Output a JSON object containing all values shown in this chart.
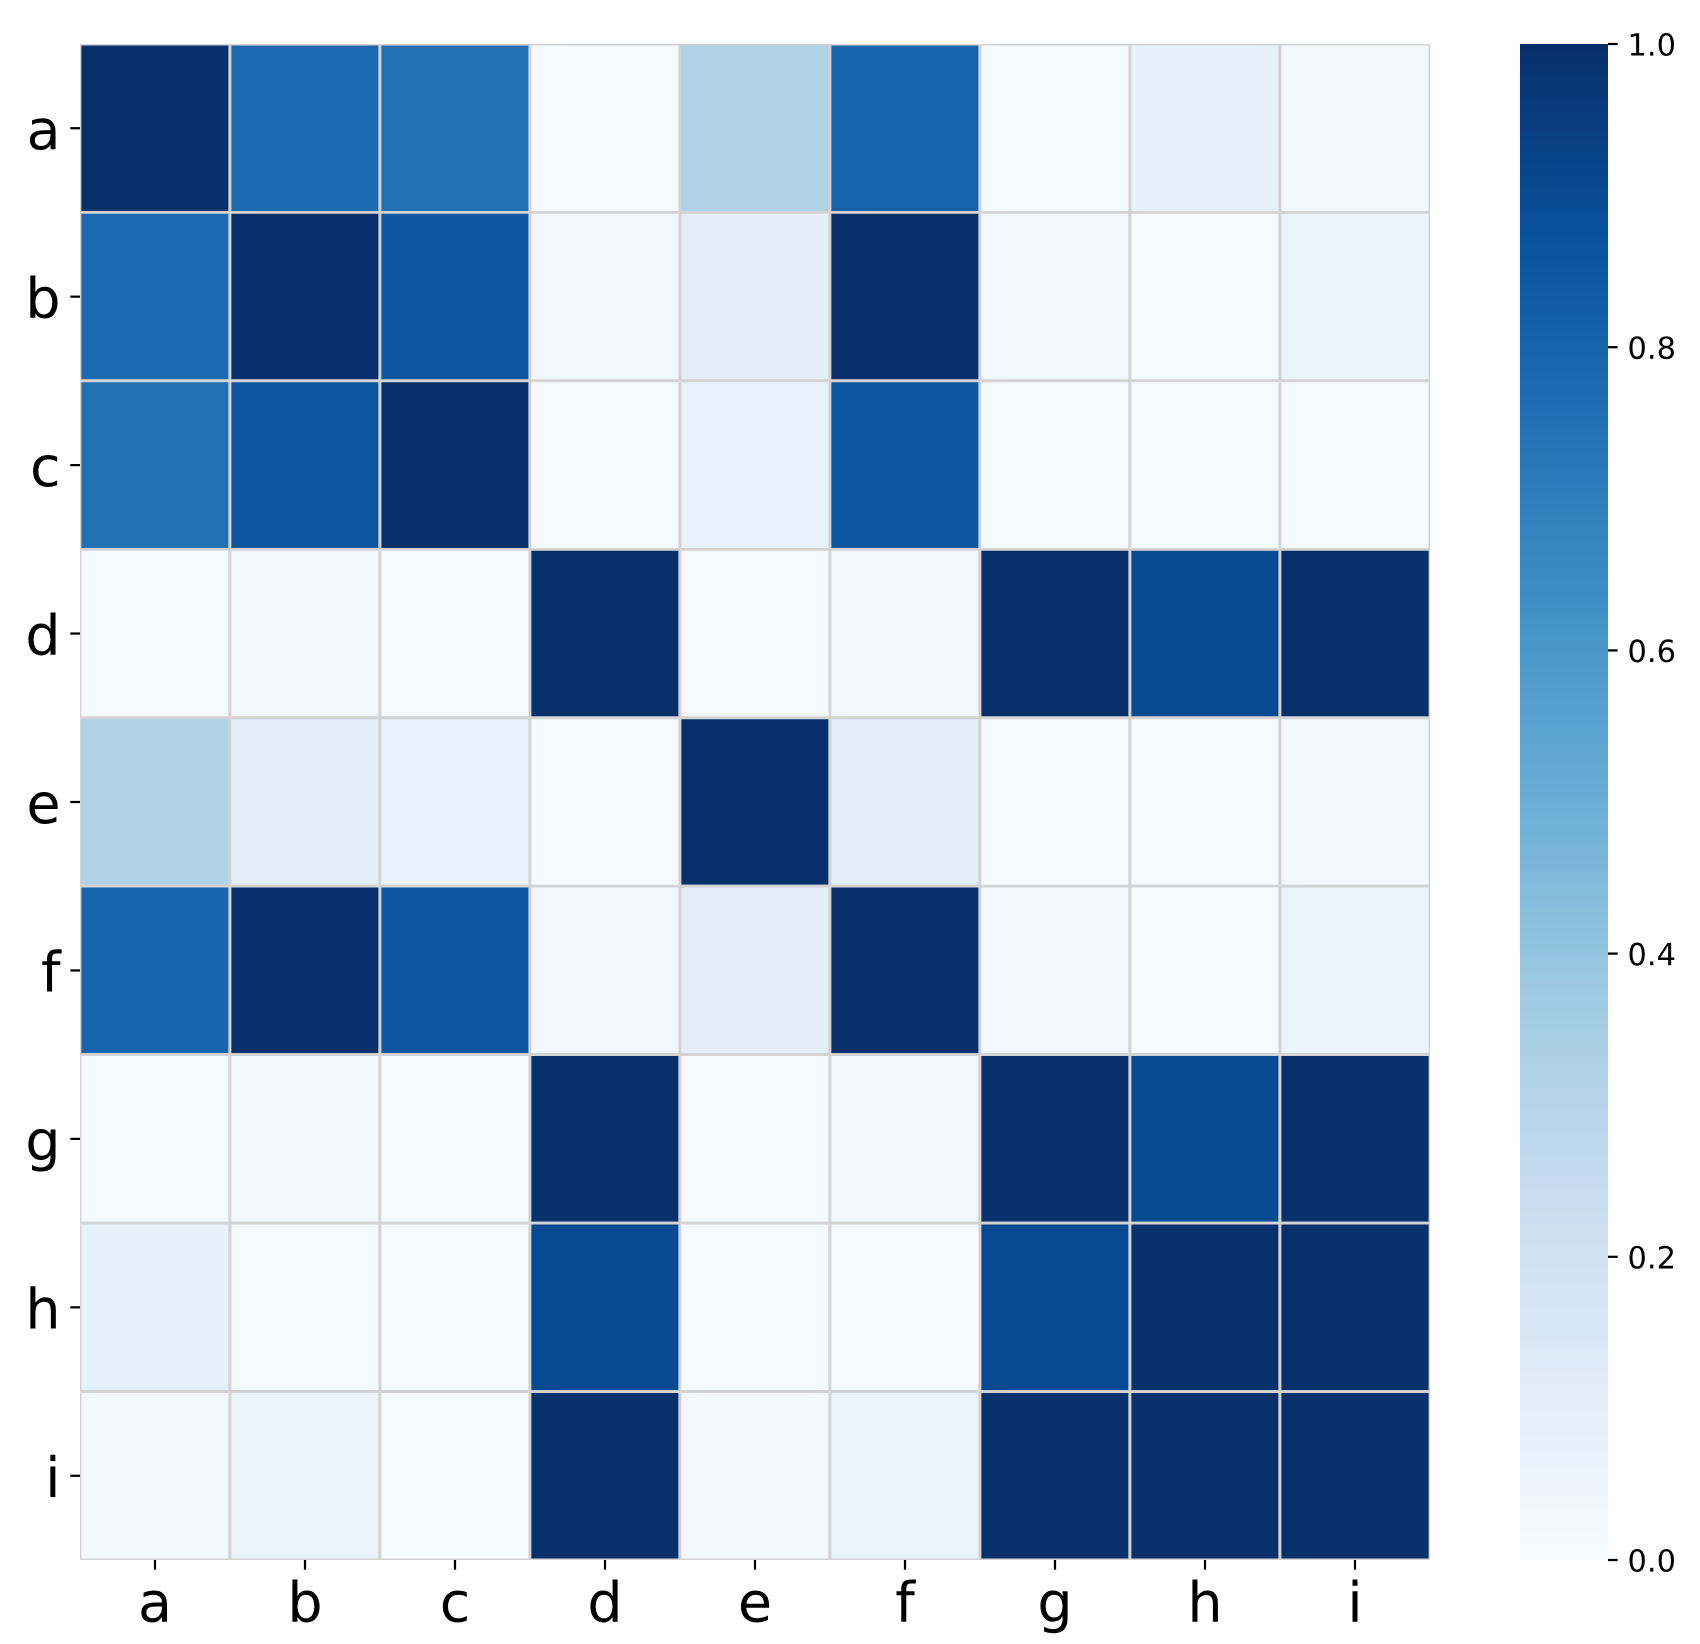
{
  "chart_data": {
    "type": "heatmap",
    "categories": [
      "a",
      "b",
      "c",
      "d",
      "e",
      "f",
      "g",
      "h",
      "i"
    ],
    "y_categories": [
      "a",
      "b",
      "c",
      "d",
      "e",
      "f",
      "g",
      "h",
      "i"
    ],
    "cells": [
      [
        1.0,
        0.78,
        0.75,
        0.01,
        0.32,
        0.8,
        0.01,
        0.08,
        0.02
      ],
      [
        0.78,
        1.0,
        0.85,
        0.03,
        0.1,
        1.0,
        0.03,
        0.01,
        0.06
      ],
      [
        0.75,
        0.85,
        1.0,
        0.01,
        0.07,
        0.85,
        0.01,
        0.01,
        0.01
      ],
      [
        0.01,
        0.03,
        0.01,
        1.0,
        0.01,
        0.03,
        1.0,
        0.9,
        1.0
      ],
      [
        0.32,
        0.1,
        0.07,
        0.01,
        1.0,
        0.1,
        0.01,
        0.01,
        0.02
      ],
      [
        0.8,
        1.0,
        0.85,
        0.03,
        0.1,
        1.0,
        0.03,
        0.01,
        0.06
      ],
      [
        0.01,
        0.03,
        0.01,
        1.0,
        0.01,
        0.03,
        1.0,
        0.9,
        1.0
      ],
      [
        0.08,
        0.01,
        0.01,
        0.9,
        0.01,
        0.01,
        0.9,
        1.0,
        1.0
      ],
      [
        0.02,
        0.06,
        0.01,
        1.0,
        0.02,
        0.06,
        1.0,
        1.0,
        1.0
      ]
    ],
    "clim": [
      0.0,
      1.0
    ],
    "cticks": [
      {
        "value": 0.0,
        "label": "0.0"
      },
      {
        "value": 0.2,
        "label": "0.2"
      },
      {
        "value": 0.4,
        "label": "0.4"
      },
      {
        "value": 0.6,
        "label": "0.6"
      },
      {
        "value": 0.8,
        "label": "0.8"
      },
      {
        "value": 1.0,
        "label": "1.0"
      }
    ]
  }
}
